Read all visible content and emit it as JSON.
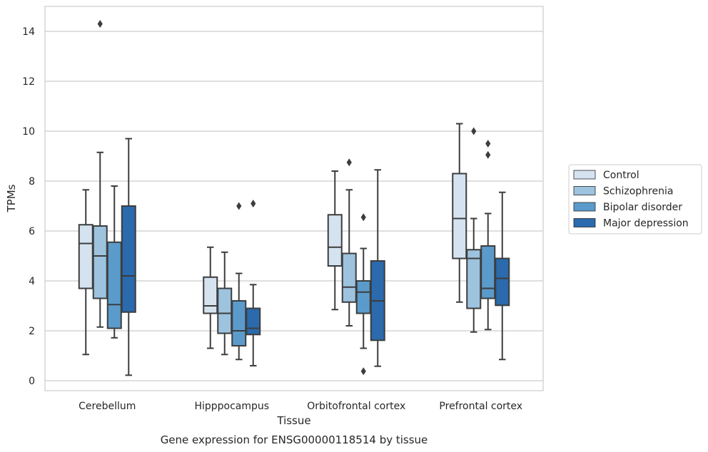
{
  "chart_data": {
    "type": "box",
    "caption": "Gene expression for ENSG00000118514 by tissue",
    "xlabel": "Tissue",
    "ylabel": "TPMs",
    "ylim": [
      -0.4,
      15
    ],
    "yticks": [
      0,
      2,
      4,
      6,
      8,
      10,
      12,
      14
    ],
    "grid": true,
    "legend_placement": "right",
    "categories": [
      "Cerebellum",
      "Hipppocampus",
      "Orbitofrontal cortex",
      "Prefrontal cortex"
    ],
    "series": [
      {
        "name": "Control",
        "color": "#d5e3f1",
        "boxes": [
          {
            "whisker_low": 1.05,
            "q1": 3.7,
            "median": 5.5,
            "q3": 6.25,
            "whisker_high": 7.65,
            "outliers": []
          },
          {
            "whisker_low": 1.3,
            "q1": 2.7,
            "median": 3.0,
            "q3": 4.15,
            "whisker_high": 5.35,
            "outliers": []
          },
          {
            "whisker_low": 2.85,
            "q1": 4.6,
            "median": 5.35,
            "q3": 6.65,
            "whisker_high": 8.4,
            "outliers": []
          },
          {
            "whisker_low": 3.15,
            "q1": 4.9,
            "median": 6.5,
            "q3": 8.3,
            "whisker_high": 10.3,
            "outliers": []
          }
        ]
      },
      {
        "name": "Schizophrenia",
        "color": "#9dc3de",
        "boxes": [
          {
            "whisker_low": 2.15,
            "q1": 3.3,
            "median": 5.0,
            "q3": 6.2,
            "whisker_high": 9.15,
            "outliers": [
              14.3
            ]
          },
          {
            "whisker_low": 1.05,
            "q1": 1.9,
            "median": 2.7,
            "q3": 3.7,
            "whisker_high": 5.15,
            "outliers": []
          },
          {
            "whisker_low": 2.2,
            "q1": 3.15,
            "median": 3.75,
            "q3": 5.1,
            "whisker_high": 7.65,
            "outliers": [
              8.75
            ]
          },
          {
            "whisker_low": 1.95,
            "q1": 2.9,
            "median": 4.9,
            "q3": 5.25,
            "whisker_high": 6.5,
            "outliers": [
              10.0
            ]
          }
        ]
      },
      {
        "name": "Bipolar disorder",
        "color": "#5b9bcb",
        "boxes": [
          {
            "whisker_low": 1.72,
            "q1": 2.1,
            "median": 3.05,
            "q3": 5.55,
            "whisker_high": 7.8,
            "outliers": []
          },
          {
            "whisker_low": 0.85,
            "q1": 1.4,
            "median": 2.0,
            "q3": 3.2,
            "whisker_high": 4.3,
            "outliers": [
              7.0
            ]
          },
          {
            "whisker_low": 1.3,
            "q1": 2.7,
            "median": 3.55,
            "q3": 4.0,
            "whisker_high": 5.3,
            "outliers": [
              6.55,
              0.38
            ]
          },
          {
            "whisker_low": 2.05,
            "q1": 3.3,
            "median": 3.7,
            "q3": 5.4,
            "whisker_high": 6.7,
            "outliers": [
              9.5,
              9.05
            ]
          }
        ]
      },
      {
        "name": "Major depression",
        "color": "#2a6aad",
        "boxes": [
          {
            "whisker_low": 0.22,
            "q1": 2.75,
            "median": 4.2,
            "q3": 7.0,
            "whisker_high": 9.7,
            "outliers": []
          },
          {
            "whisker_low": 0.6,
            "q1": 1.85,
            "median": 2.1,
            "q3": 2.9,
            "whisker_high": 3.85,
            "outliers": [
              7.1
            ]
          },
          {
            "whisker_low": 0.58,
            "q1": 1.62,
            "median": 3.2,
            "q3": 4.8,
            "whisker_high": 8.45,
            "outliers": []
          },
          {
            "whisker_low": 0.85,
            "q1": 3.02,
            "median": 4.1,
            "q3": 4.9,
            "whisker_high": 7.55,
            "outliers": []
          }
        ]
      }
    ]
  }
}
